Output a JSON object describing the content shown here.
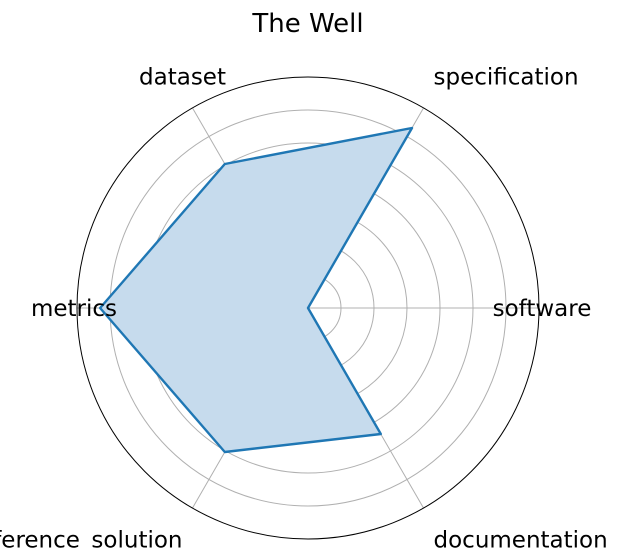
{
  "chart_data": {
    "type": "radar",
    "title": "The Well",
    "categories": [
      "software",
      "specification",
      "dataset",
      "metrics",
      "reference_solution",
      "documentation"
    ],
    "series": [
      {
        "values": [
          0,
          1.0,
          0.8,
          1.0,
          0.8,
          0.7
        ]
      }
    ],
    "rlim": [
      0,
      1.0
    ],
    "grid_rings": 6,
    "grid": true,
    "colors": {
      "line": "#1f77b4",
      "fill": "#c6dbed",
      "grid": "#b0b0b0"
    }
  }
}
